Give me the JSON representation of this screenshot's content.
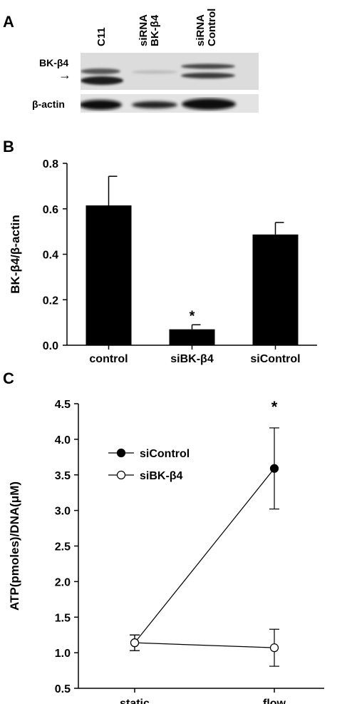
{
  "panels": {
    "a": {
      "letter": "A",
      "lane_labels": [
        "C11",
        "siRNA\nBK-β4",
        "siRNA\nControl"
      ],
      "row_labels": [
        "BK-β4",
        "β-actin"
      ],
      "arrow": "→"
    },
    "b": {
      "letter": "B"
    },
    "c": {
      "letter": "C"
    }
  },
  "chart_data": [
    {
      "type": "bar",
      "categories": [
        "control",
        "siBK-β4",
        "siControl"
      ],
      "values": [
        0.615,
        0.07,
        0.487
      ],
      "error_plus": [
        0.128,
        0.02,
        0.053
      ],
      "significance": [
        "",
        "*",
        ""
      ],
      "ylabel": "BK-β4/β-actin",
      "xlabel": "",
      "ylim": [
        0,
        0.8
      ],
      "yticks": [
        "0.0",
        "0.2",
        "0.4",
        "0.6",
        "0.8"
      ],
      "bar_color": "#000000"
    },
    {
      "type": "line",
      "x": [
        "static",
        "flow"
      ],
      "series": [
        {
          "name": "siControl",
          "values": [
            1.14,
            3.59
          ],
          "errors": [
            0.11,
            0.57
          ],
          "marker": "filled-circle"
        },
        {
          "name": "siBK-β4",
          "values": [
            1.14,
            1.07
          ],
          "errors": [
            0.11,
            0.26
          ],
          "marker": "open-circle"
        }
      ],
      "significance": [
        "",
        "*"
      ],
      "ylabel": "ATP(pmoles)/DNA(μM)",
      "xlabel": "",
      "ylim": [
        0.5,
        4.5
      ],
      "yticks": [
        "0.5",
        "1.0",
        "1.5",
        "2.0",
        "2.5",
        "3.0",
        "3.5",
        "4.0",
        "4.5"
      ],
      "legend_position": "upper-left"
    }
  ]
}
